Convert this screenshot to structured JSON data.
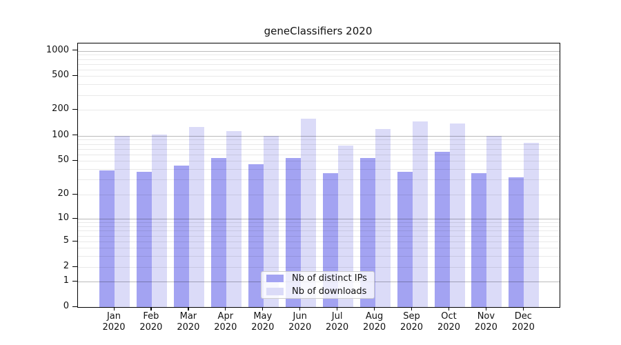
{
  "title": "geneClassifiers 2020",
  "chart_data": {
    "type": "bar",
    "title": "geneClassifiers 2020",
    "categories": [
      "Jan",
      "Feb",
      "Mar",
      "Apr",
      "May",
      "Jun",
      "Jul",
      "Aug",
      "Sep",
      "Oct",
      "Nov",
      "Dec"
    ],
    "category_year_line": "2020",
    "series": [
      {
        "name": "Nb of distinct IPs",
        "color": "#a3a3f2",
        "values": [
          39,
          37,
          44,
          54,
          46,
          54,
          36,
          54,
          37,
          64,
          36,
          32
        ]
      },
      {
        "name": "Nb of downloads",
        "color": "#dbdbf8",
        "values": [
          100,
          103,
          126,
          113,
          100,
          158,
          76,
          120,
          146,
          138,
          100,
          82
        ]
      }
    ],
    "xlabel": "",
    "ylabel": "",
    "yscale": "log-like",
    "ylim": [
      0,
      1000
    ],
    "yticks": [
      0,
      1,
      2,
      5,
      10,
      20,
      50,
      100,
      200,
      500,
      1000
    ],
    "grid": "on",
    "grid_major_values": [
      1,
      10,
      100,
      1000
    ],
    "grid_minor_values": [
      2,
      3,
      4,
      5,
      6,
      7,
      8,
      9,
      20,
      30,
      40,
      50,
      60,
      70,
      80,
      90,
      200,
      300,
      400,
      500,
      600,
      700,
      800,
      900
    ],
    "legend_position": "lower center",
    "legend_entries": [
      "Nb of distinct IPs",
      "Nb of downloads"
    ]
  }
}
